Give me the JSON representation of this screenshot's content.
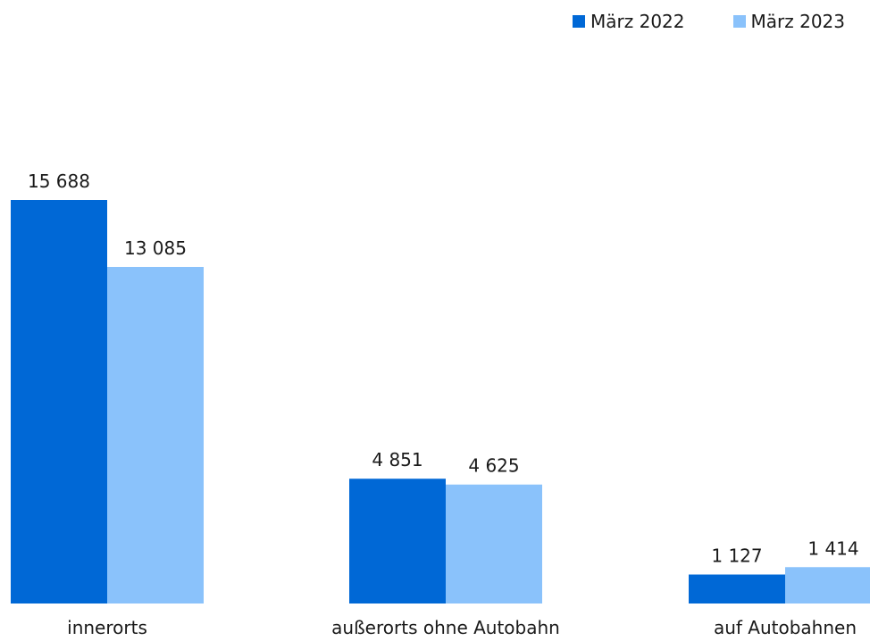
{
  "colors": {
    "series_2022": "#0068d6",
    "series_2023": "#8ac2fb"
  },
  "chart_data": {
    "type": "bar",
    "categories": [
      "innerorts",
      "außerorts ohne Autobahn",
      "auf Autobahnen"
    ],
    "series": [
      {
        "name": "März 2022",
        "values": [
          15688,
          4851,
          1127
        ],
        "labels": [
          "15 688",
          "4 851",
          "1 127"
        ]
      },
      {
        "name": "März 2023",
        "values": [
          13085,
          4625,
          1414
        ],
        "labels": [
          "13 085",
          "4 625",
          "1 414"
        ]
      }
    ],
    "ylim": [
      0,
      16000
    ],
    "grid": false,
    "legend": "top-right",
    "title": "",
    "xlabel": "",
    "ylabel": ""
  }
}
